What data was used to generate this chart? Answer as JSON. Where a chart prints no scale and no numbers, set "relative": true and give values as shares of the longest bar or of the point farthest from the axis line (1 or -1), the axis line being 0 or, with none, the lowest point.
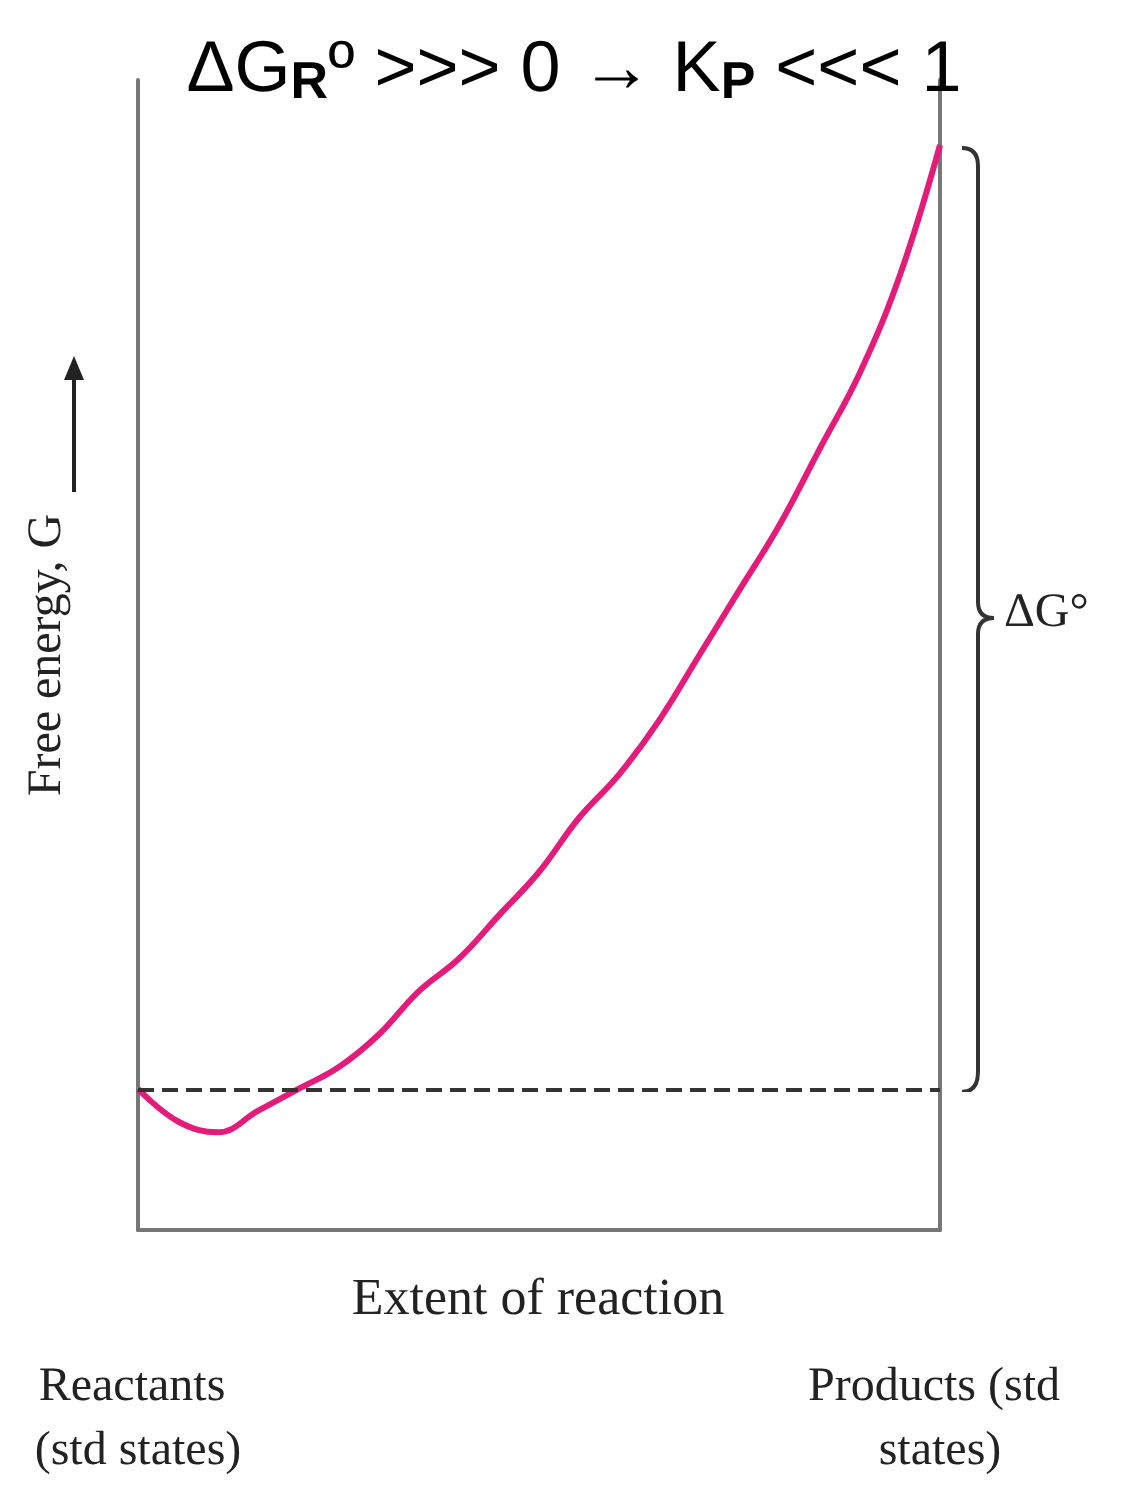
{
  "chart_data": {
    "type": "line",
    "title": "ΔG$_{R}$º >>> 0 → K$_{P}$ <<< 1",
    "xlabel": "Extent of reaction",
    "ylabel": "Free energy, G",
    "relative": true,
    "marker": "none",
    "categories": [
      "Reactants (std states)",
      null,
      null,
      null,
      null,
      null,
      null,
      null,
      null,
      null,
      null,
      null,
      null,
      null,
      null,
      null,
      null,
      null,
      null,
      null,
      "Products (std states)"
    ],
    "series": [
      {
        "color": "#e31c79",
        "values": [
          0.13,
          0.1,
          0.09,
          0.11,
          0.13,
          0.15,
          0.18,
          0.22,
          0.25,
          0.29,
          0.33,
          0.38,
          0.42,
          0.47,
          0.53,
          0.59,
          0.65,
          0.72,
          0.79,
          0.88,
          1
        ]
      }
    ],
    "ref_lines": [
      {
        "axis": "y",
        "value": 0.13,
        "color": "#333333",
        "line_style": "dashed"
      }
    ],
    "annotations": [
      "ΔG°"
    ]
  }
}
